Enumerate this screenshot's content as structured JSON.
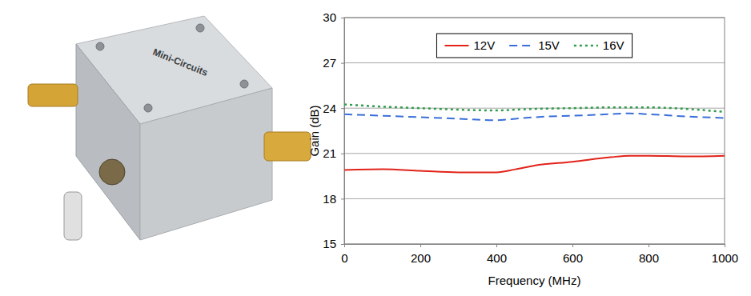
{
  "chart_data": {
    "type": "line",
    "x_label": "Frequency (MHz)",
    "y_label": "Gain (dB)",
    "x": [
      0,
      100,
      200,
      300,
      400,
      450,
      500,
      600,
      700,
      750,
      800,
      900,
      1000
    ],
    "series": [
      {
        "name": "12V",
        "color": "#e2231a",
        "line_style": "solid",
        "values": [
          19.9,
          19.95,
          19.85,
          19.75,
          19.75,
          19.95,
          20.2,
          20.45,
          20.75,
          20.85,
          20.85,
          20.8,
          20.85
        ]
      },
      {
        "name": "15V",
        "color": "#3a6fd8",
        "line_style": "dashed",
        "values": [
          23.6,
          23.5,
          23.4,
          23.3,
          23.2,
          23.3,
          23.4,
          23.5,
          23.6,
          23.65,
          23.6,
          23.45,
          23.35
        ]
      },
      {
        "name": "16V",
        "color": "#2e9c4a",
        "line_style": "dotted",
        "values": [
          24.25,
          24.1,
          24.0,
          23.9,
          23.85,
          23.9,
          23.95,
          24.0,
          24.05,
          24.05,
          24.05,
          23.95,
          23.75
        ]
      }
    ],
    "xlim": [
      0,
      1000
    ],
    "xticks": [
      0,
      200,
      400,
      600,
      800,
      1000
    ],
    "ylim": [
      15,
      30
    ],
    "yticks": [
      15,
      18,
      21,
      24,
      27,
      30
    ],
    "grid": true,
    "legend": "top"
  },
  "photo": {
    "label": "Mini-Circuits"
  }
}
